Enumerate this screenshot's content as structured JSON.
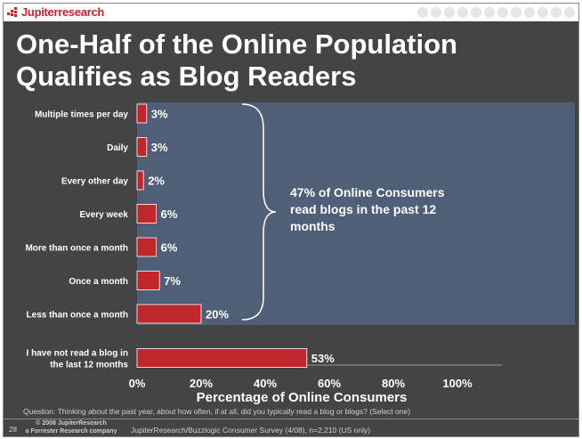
{
  "brand": {
    "logo_text": "Jupiterresearch",
    "logo_color": "#c0272d"
  },
  "title_lines": [
    "One-Half of the Online Population",
    "Qualifies as Blog Readers"
  ],
  "chart_data": {
    "type": "bar",
    "orientation": "horizontal",
    "categories": [
      "Multiple times per day",
      "Daily",
      "Every other day",
      "Every week",
      "More than once a month",
      "Once a month",
      "Less than once a month",
      "I have not read a blog in the last 12 months"
    ],
    "category_lines": [
      [
        "Multiple times per day"
      ],
      [
        "Daily"
      ],
      [
        "Every other day"
      ],
      [
        "Every week"
      ],
      [
        "More than once a month"
      ],
      [
        "Once a month"
      ],
      [
        "Less than once a month"
      ],
      [
        "I have not read a blog in",
        "the last 12 months"
      ]
    ],
    "values": [
      3,
      3,
      2,
      6,
      6,
      7,
      20,
      53
    ],
    "value_labels": [
      "3%",
      "3%",
      "2%",
      "6%",
      "6%",
      "7%",
      "20%",
      "53%"
    ],
    "xlabel": "Percentage of Online Consumers",
    "x_ticks": [
      "0%",
      "20%",
      "40%",
      "60%",
      "80%",
      "100%"
    ],
    "xlim": [
      0,
      100
    ],
    "bar_color": "#c0272d",
    "highlight_color": "#4f5f78",
    "annotation": {
      "lines": [
        "47% of Online Consumers",
        "read blogs in the past 12",
        "months"
      ]
    }
  },
  "question": "Question: Thinking about the past year, about how often, if at all, did you typically read a blog or blogs? (Select one)",
  "footer": {
    "page_number": "28",
    "copyright_lines": [
      "© 2008 JupiterResearch",
      "a Forrester Research company"
    ],
    "source": "JupiterResearch/Buzzlogic Consumer Survey (4/08), n=2,210 (US only)"
  }
}
